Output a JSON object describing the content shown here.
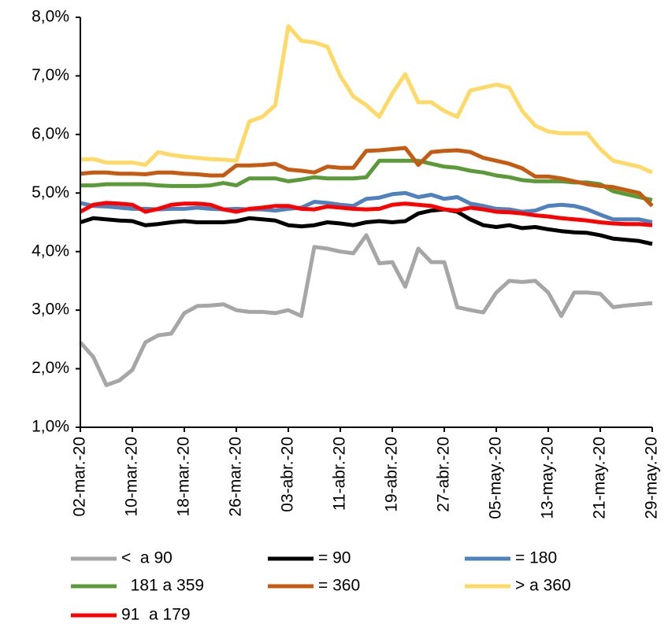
{
  "chart_data": {
    "type": "line",
    "categories": [
      "02-mar.-20",
      null,
      null,
      null,
      "10-mar.-20",
      null,
      null,
      null,
      "18-mar.-20",
      null,
      null,
      null,
      "26-mar.-20",
      null,
      null,
      null,
      "03-abr.-20",
      null,
      null,
      null,
      "11-abr.-20",
      null,
      null,
      null,
      "19-abr.-20",
      null,
      null,
      null,
      "27-abr.-20",
      null,
      null,
      null,
      "05-may.-20",
      null,
      null,
      null,
      "13-may.-20",
      null,
      null,
      null,
      "21-may.-20",
      null,
      null,
      null,
      "29-may.-20"
    ],
    "ylim": [
      1,
      8
    ],
    "yticks": [
      {
        "value": 1,
        "label": "1,0%"
      },
      {
        "value": 2,
        "label": "2,0%"
      },
      {
        "value": 3,
        "label": "3,0%"
      },
      {
        "value": 4,
        "label": "4,0%"
      },
      {
        "value": 5,
        "label": "5,0%"
      },
      {
        "value": 6,
        "label": "6,0%"
      },
      {
        "value": 7,
        "label": "7,0%"
      },
      {
        "value": 8,
        "label": "8,0%"
      }
    ],
    "grid": false,
    "legend": "bottom",
    "series": [
      {
        "name": "<  a 90",
        "color": "#a6a6a6",
        "values": [
          2.45,
          2.2,
          1.72,
          1.8,
          1.98,
          2.45,
          2.57,
          2.6,
          2.95,
          3.07,
          3.08,
          3.1,
          3.0,
          2.97,
          2.97,
          2.95,
          3.0,
          2.9,
          4.08,
          4.05,
          4.0,
          3.97,
          4.28,
          3.8,
          3.82,
          3.4,
          4.05,
          3.82,
          3.82,
          3.05,
          3.0,
          2.96,
          3.3,
          3.5,
          3.48,
          3.5,
          3.3,
          2.9,
          3.3,
          3.3,
          3.28,
          3.05,
          3.08,
          3.1,
          3.12
        ]
      },
      {
        "name": "= 90",
        "color": "#000000",
        "values": [
          4.5,
          4.57,
          4.55,
          4.53,
          4.52,
          4.45,
          4.47,
          4.5,
          4.52,
          4.5,
          4.5,
          4.5,
          4.52,
          4.57,
          4.55,
          4.53,
          4.45,
          4.43,
          4.45,
          4.5,
          4.48,
          4.45,
          4.5,
          4.52,
          4.5,
          4.52,
          4.65,
          4.7,
          4.72,
          4.68,
          4.55,
          4.45,
          4.42,
          4.45,
          4.4,
          4.42,
          4.38,
          4.35,
          4.33,
          4.32,
          4.28,
          4.22,
          4.2,
          4.18,
          4.13
        ]
      },
      {
        "name": "= 180",
        "color": "#4f81bd",
        "values": [
          4.83,
          4.78,
          4.77,
          4.75,
          4.73,
          4.73,
          4.72,
          4.73,
          4.73,
          4.75,
          4.73,
          4.72,
          4.73,
          4.72,
          4.72,
          4.7,
          4.73,
          4.75,
          4.85,
          4.83,
          4.8,
          4.78,
          4.9,
          4.92,
          4.98,
          5.0,
          4.93,
          4.97,
          4.9,
          4.93,
          4.82,
          4.78,
          4.73,
          4.72,
          4.68,
          4.7,
          4.78,
          4.8,
          4.78,
          4.72,
          4.63,
          4.55,
          4.55,
          4.55,
          4.5
        ]
      },
      {
        "name": "  181 a 359",
        "color": "#5b9a38",
        "values": [
          5.13,
          5.13,
          5.15,
          5.15,
          5.15,
          5.15,
          5.13,
          5.12,
          5.12,
          5.12,
          5.13,
          5.17,
          5.13,
          5.25,
          5.25,
          5.25,
          5.2,
          5.23,
          5.27,
          5.25,
          5.25,
          5.25,
          5.27,
          5.55,
          5.55,
          5.55,
          5.55,
          5.5,
          5.45,
          5.43,
          5.38,
          5.35,
          5.3,
          5.27,
          5.22,
          5.2,
          5.2,
          5.2,
          5.18,
          5.18,
          5.15,
          5.03,
          4.98,
          4.93,
          4.88
        ]
      },
      {
        "name": "= 360",
        "color": "#c55a11",
        "values": [
          5.33,
          5.35,
          5.35,
          5.33,
          5.33,
          5.32,
          5.35,
          5.35,
          5.33,
          5.32,
          5.3,
          5.3,
          5.47,
          5.47,
          5.48,
          5.5,
          5.4,
          5.38,
          5.35,
          5.45,
          5.43,
          5.43,
          5.72,
          5.73,
          5.75,
          5.77,
          5.48,
          5.7,
          5.72,
          5.73,
          5.7,
          5.6,
          5.55,
          5.5,
          5.42,
          5.28,
          5.28,
          5.25,
          5.2,
          5.15,
          5.12,
          5.1,
          5.05,
          5.0,
          4.78
        ]
      },
      {
        "name": "> a 360",
        "color": "#ffd966",
        "values": [
          5.57,
          5.58,
          5.52,
          5.52,
          5.52,
          5.48,
          5.7,
          5.65,
          5.62,
          5.6,
          5.58,
          5.57,
          5.55,
          6.22,
          6.3,
          6.5,
          7.85,
          7.6,
          7.57,
          7.5,
          7.0,
          6.65,
          6.5,
          6.3,
          6.7,
          7.03,
          6.55,
          6.55,
          6.4,
          6.3,
          6.75,
          6.8,
          6.85,
          6.8,
          6.4,
          6.15,
          6.05,
          6.02,
          6.02,
          6.02,
          5.75,
          5.55,
          5.5,
          5.45,
          5.35
        ]
      },
      {
        "name": "91  a 179",
        "color": "#ff0000",
        "values": [
          4.68,
          4.8,
          4.83,
          4.82,
          4.8,
          4.68,
          4.73,
          4.8,
          4.82,
          4.82,
          4.8,
          4.72,
          4.68,
          4.73,
          4.75,
          4.78,
          4.78,
          4.73,
          4.72,
          4.77,
          4.75,
          4.73,
          4.72,
          4.73,
          4.8,
          4.82,
          4.8,
          4.78,
          4.72,
          4.7,
          4.75,
          4.72,
          4.68,
          4.67,
          4.65,
          4.62,
          4.6,
          4.57,
          4.55,
          4.53,
          4.5,
          4.48,
          4.47,
          4.47,
          4.45
        ]
      }
    ]
  }
}
